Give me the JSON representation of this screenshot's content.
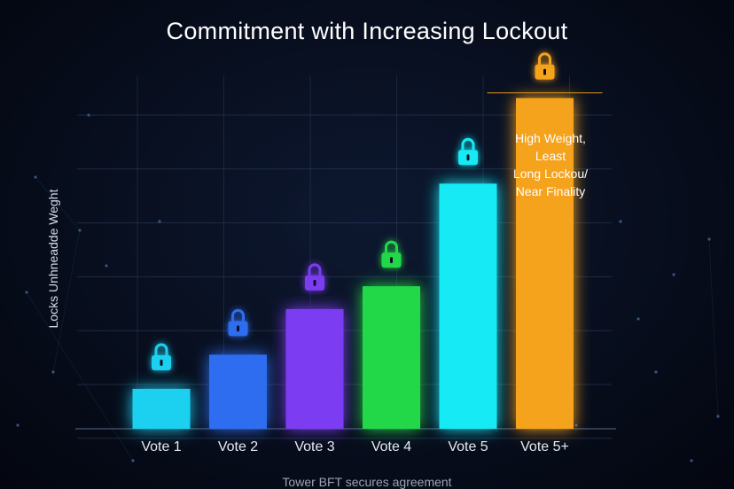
{
  "chart_data": {
    "type": "bar",
    "title": "Commitment with Increasing Lockout",
    "xlabel": "",
    "ylabel": "Locks Unhneadde Weght",
    "footer": "Tower BFT secures agreement",
    "categories": [
      "Vote 1",
      "Vote 2",
      "Vote 3",
      "Vote 4",
      "Vote 5",
      "Vote 5+"
    ],
    "values": [
      7,
      13,
      21,
      25,
      43,
      58
    ],
    "ylim": [
      0,
      62
    ],
    "colors": [
      "#1fd0f0",
      "#2f6df0",
      "#7b3cf2",
      "#24d84a",
      "#12eaf4",
      "#f5a21c"
    ],
    "annotation": [
      "High Weight,",
      "Least",
      "Long Lockou/",
      "Near Finality"
    ],
    "grid": true,
    "icon": "lock-icon"
  }
}
